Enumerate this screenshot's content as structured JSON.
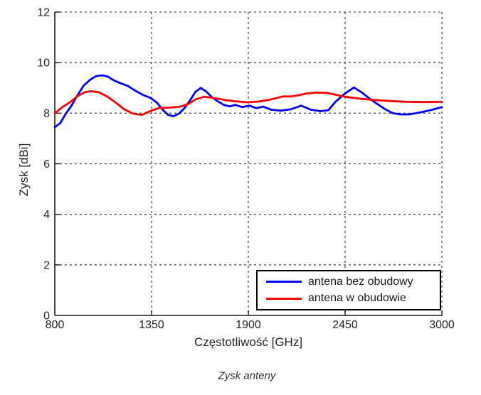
{
  "figure": {
    "caption": "Zysk anteny"
  },
  "chart_data": {
    "type": "line",
    "title": "",
    "xlabel": "Częstotliwość [GHz]",
    "ylabel": "Zysk [dBi]",
    "xlim": [
      800,
      3000
    ],
    "ylim": [
      0,
      12
    ],
    "xticks": [
      800,
      1350,
      1900,
      2450,
      3000
    ],
    "yticks": [
      0,
      2,
      4,
      6,
      8,
      10,
      12
    ],
    "grid": true,
    "grid_style": "dashed",
    "legend_position": "lower right",
    "colors": {
      "axis": "#1a1a1a",
      "grid": "#4d4d4d",
      "text": "#262626"
    },
    "series": [
      {
        "name": "antena bez obudowy",
        "color": "#0000ff",
        "x": [
          800,
          830,
          860,
          895,
          930,
          965,
          1000,
          1035,
          1070,
          1100,
          1135,
          1175,
          1215,
          1255,
          1300,
          1345,
          1380,
          1415,
          1445,
          1475,
          1505,
          1535,
          1570,
          1600,
          1630,
          1660,
          1690,
          1725,
          1760,
          1795,
          1825,
          1865,
          1905,
          1945,
          1985,
          2030,
          2085,
          2145,
          2200,
          2255,
          2310,
          2355,
          2395,
          2450,
          2500,
          2545,
          2585,
          2625,
          2675,
          2720,
          2770,
          2820,
          2875,
          2935,
          3000
        ],
        "y": [
          7.45,
          7.6,
          7.95,
          8.3,
          8.72,
          9.1,
          9.32,
          9.47,
          9.5,
          9.45,
          9.3,
          9.18,
          9.08,
          8.9,
          8.73,
          8.6,
          8.42,
          8.12,
          7.93,
          7.88,
          7.98,
          8.18,
          8.52,
          8.85,
          9.0,
          8.86,
          8.65,
          8.48,
          8.33,
          8.27,
          8.33,
          8.24,
          8.3,
          8.2,
          8.26,
          8.14,
          8.1,
          8.16,
          8.3,
          8.14,
          8.08,
          8.12,
          8.45,
          8.78,
          9.02,
          8.82,
          8.6,
          8.4,
          8.17,
          8.0,
          7.95,
          7.96,
          8.03,
          8.12,
          8.24
        ]
      },
      {
        "name": "antena w obudowie",
        "color": "#ff0000",
        "x": [
          800,
          845,
          890,
          930,
          970,
          1005,
          1050,
          1100,
          1150,
          1195,
          1245,
          1295,
          1340,
          1390,
          1450,
          1515,
          1560,
          1600,
          1650,
          1705,
          1770,
          1825,
          1890,
          1955,
          2015,
          2060,
          2095,
          2140,
          2180,
          2230,
          2290,
          2350,
          2440,
          2540,
          2620,
          2710,
          2800,
          2900,
          3000
        ],
        "y": [
          8.0,
          8.25,
          8.45,
          8.68,
          8.83,
          8.87,
          8.83,
          8.65,
          8.4,
          8.15,
          7.98,
          7.93,
          8.08,
          8.2,
          8.22,
          8.26,
          8.37,
          8.55,
          8.65,
          8.6,
          8.52,
          8.47,
          8.43,
          8.46,
          8.52,
          8.6,
          8.66,
          8.66,
          8.7,
          8.78,
          8.82,
          8.8,
          8.66,
          8.57,
          8.52,
          8.48,
          8.45,
          8.44,
          8.45
        ]
      }
    ]
  }
}
